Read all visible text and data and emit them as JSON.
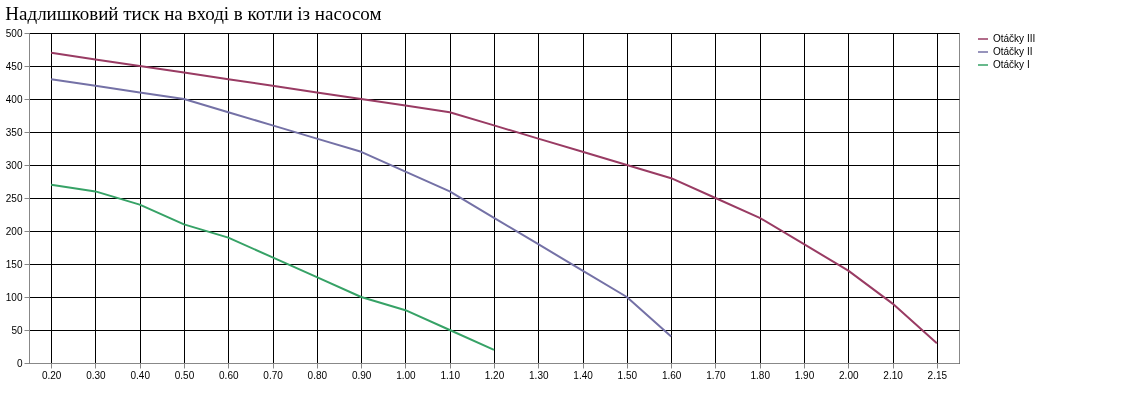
{
  "chart_data": {
    "type": "line",
    "title": "Надлишковий тиск на вході в котли із насосом",
    "categories": [
      "0.20",
      "0.30",
      "0.40",
      "0.50",
      "0.60",
      "0.70",
      "0.80",
      "0.90",
      "1.00",
      "1.10",
      "1.20",
      "1.30",
      "1.40",
      "1.50",
      "1.60",
      "1.70",
      "1.80",
      "1.90",
      "2.00",
      "2.10",
      "2.15"
    ],
    "series": [
      {
        "name": "Otáčky III",
        "color": "#993b63",
        "values": [
          470,
          460,
          450,
          440,
          430,
          420,
          410,
          400,
          390,
          380,
          360,
          340,
          320,
          300,
          280,
          250,
          220,
          180,
          140,
          90,
          30
        ]
      },
      {
        "name": "Otáčky II",
        "color": "#7471a6",
        "values": [
          430,
          420,
          410,
          400,
          380,
          360,
          340,
          320,
          290,
          260,
          220,
          180,
          140,
          100,
          40,
          null,
          null,
          null,
          null,
          null,
          null
        ]
      },
      {
        "name": "Otáčky I",
        "color": "#36a266",
        "values": [
          270,
          260,
          240,
          210,
          190,
          160,
          130,
          100,
          80,
          50,
          20,
          null,
          null,
          null,
          null,
          null,
          null,
          null,
          null,
          null,
          null
        ]
      }
    ],
    "ylim": [
      0,
      500
    ],
    "yticks": [
      0,
      50,
      100,
      150,
      200,
      250,
      300,
      350,
      400,
      450,
      500
    ],
    "grid": true,
    "legend": "right",
    "marker": "none",
    "line_style": "solid"
  }
}
